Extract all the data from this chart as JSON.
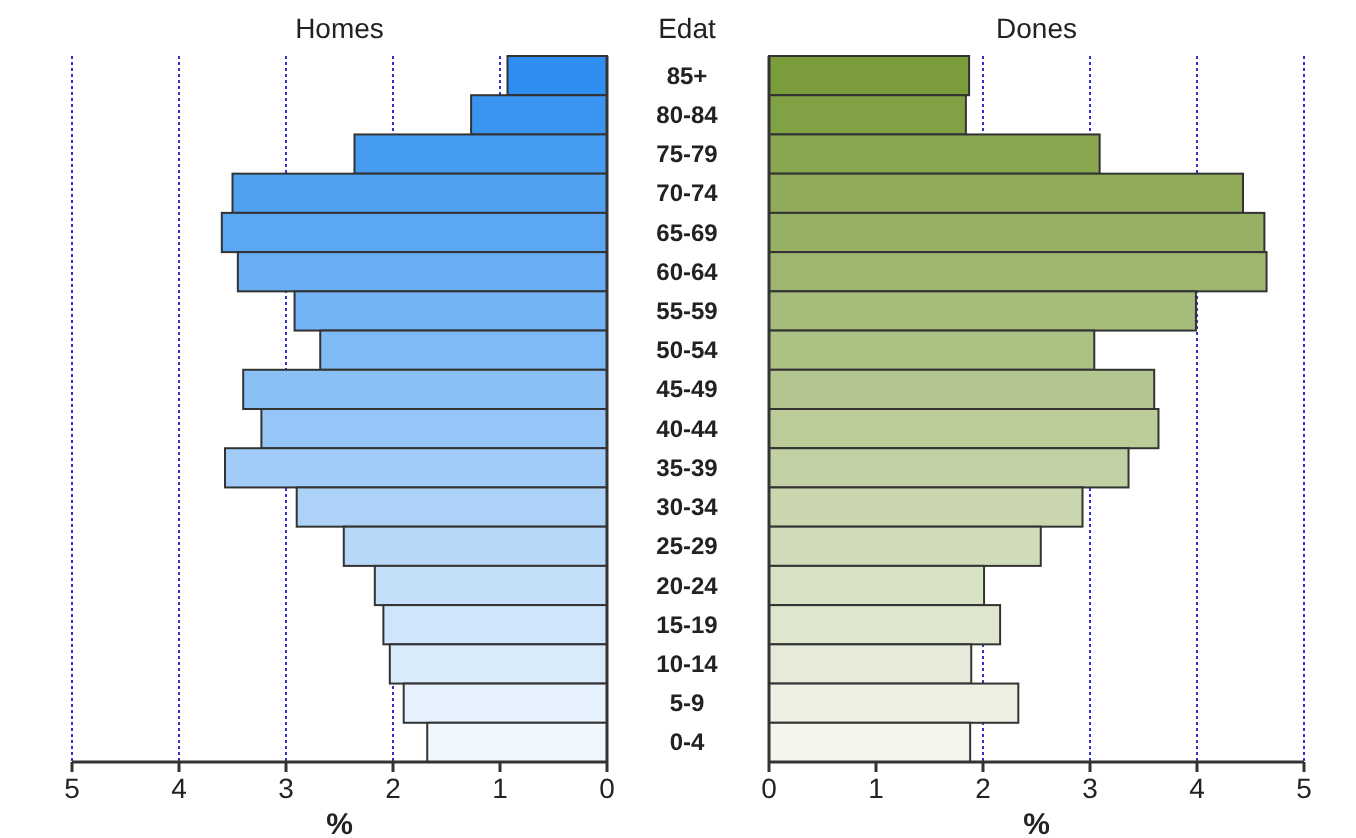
{
  "chart_data": [
    {
      "type": "bar",
      "orientation": "horizontal",
      "title": "Homes",
      "xlabel": "%",
      "ylabel": "Edat",
      "categories": [
        "85+",
        "80-84",
        "75-79",
        "70-74",
        "65-69",
        "60-64",
        "55-59",
        "50-54",
        "45-49",
        "40-44",
        "35-39",
        "30-34",
        "25-29",
        "20-24",
        "15-19",
        "10-14",
        "5-9",
        "0-4"
      ],
      "values": [
        0.93,
        1.27,
        2.36,
        3.5,
        3.6,
        3.45,
        2.92,
        2.68,
        3.4,
        3.23,
        3.57,
        2.9,
        2.46,
        2.17,
        2.09,
        2.03,
        1.9,
        1.68
      ],
      "colors": [
        "#2f8ff0",
        "#3a95f1",
        "#469bf2",
        "#51a1f2",
        "#5ca7f3",
        "#68aef4",
        "#73b4f5",
        "#7ebaf5",
        "#8ac0f6",
        "#95c6f7",
        "#a1ccf8",
        "#acd2f8",
        "#b7d8f9",
        "#c3dffa",
        "#cee5fb",
        "#d9ebfb",
        "#e5f1fc",
        "#f0f7fd"
      ],
      "xlim": [
        5,
        0
      ],
      "xticks": [
        5,
        4,
        3,
        2,
        1,
        0
      ],
      "grid": "x"
    },
    {
      "type": "bar",
      "orientation": "horizontal",
      "title": "Dones",
      "xlabel": "%",
      "categories": [
        null,
        null,
        null,
        null,
        null,
        null,
        null,
        null,
        null,
        null,
        null,
        null,
        null,
        null,
        null,
        null,
        null,
        null
      ],
      "values": [
        1.87,
        1.84,
        3.09,
        4.43,
        4.63,
        4.65,
        3.99,
        3.04,
        3.6,
        3.64,
        3.36,
        2.93,
        2.54,
        2.01,
        2.16,
        1.89,
        2.33,
        1.88
      ],
      "colors": [
        "#7a9c3a",
        "#81a145",
        "#88a74f",
        "#90ac5a",
        "#97b164",
        "#9eb66f",
        "#a5bc7a",
        "#acc184",
        "#b3c68f",
        "#bbcc99",
        "#c2d1a4",
        "#c9d6ae",
        "#d0dbb9",
        "#d7e1c4",
        "#dfe6ce",
        "#e6ebd9",
        "#edf1e3",
        "#f4f6ee"
      ],
      "xlim": [
        0,
        5
      ],
      "xticks": [
        0,
        1,
        2,
        3,
        4,
        5
      ],
      "grid": "x",
      "tick_labels": "x"
    }
  ]
}
